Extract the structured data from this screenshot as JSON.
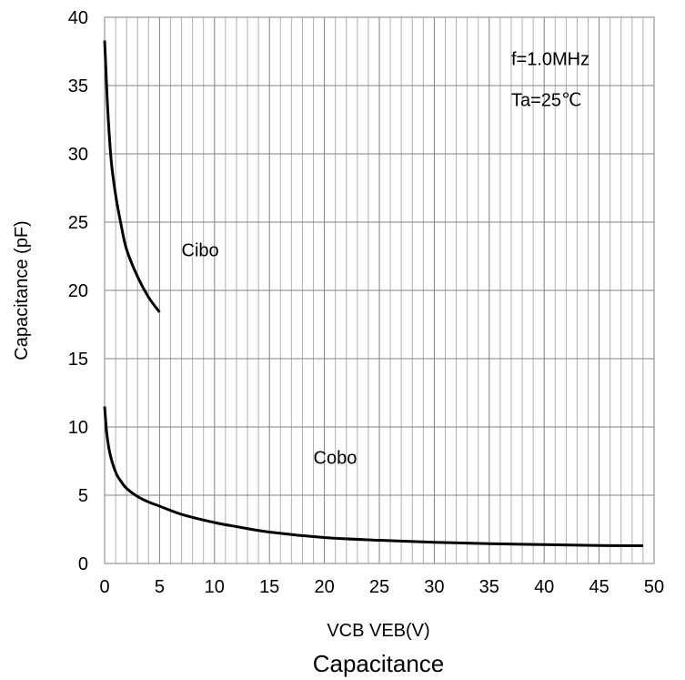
{
  "chart_data": {
    "type": "line",
    "title": "Capacitance",
    "xlabel": "VCB VEB(V)",
    "ylabel": "Capacitance (pF)",
    "xlim": [
      0,
      50
    ],
    "ylim": [
      0,
      40
    ],
    "x_ticks": [
      "0",
      "5",
      "10",
      "15",
      "20",
      "25",
      "30",
      "35",
      "40",
      "45",
      "50"
    ],
    "y_ticks": [
      "0",
      "5",
      "10",
      "15",
      "20",
      "25",
      "30",
      "35",
      "40"
    ],
    "grid": true,
    "minor_grid_x": 1,
    "series": [
      {
        "name": "Cibo",
        "color": "#000000",
        "x": [
          0,
          0.1,
          0.3,
          0.6,
          1,
          1.5,
          2,
          3,
          4,
          5
        ],
        "y": [
          38.3,
          36.5,
          33,
          29.5,
          27,
          24.8,
          23,
          21,
          19.5,
          18.4
        ]
      },
      {
        "name": "Cobo",
        "color": "#000000",
        "x": [
          0,
          0.2,
          0.5,
          1,
          1.5,
          2,
          3,
          4,
          5,
          7,
          10,
          12,
          15,
          20,
          25,
          30,
          35,
          40,
          45,
          49
        ],
        "y": [
          11.5,
          9.5,
          8,
          6.7,
          6,
          5.5,
          4.9,
          4.5,
          4.2,
          3.6,
          3.0,
          2.7,
          2.3,
          1.9,
          1.7,
          1.55,
          1.45,
          1.38,
          1.32,
          1.3
        ]
      }
    ],
    "annotations": [
      {
        "text": "f=1.0MHz",
        "x": 37,
        "y": 36.5
      },
      {
        "text": "Ta=25℃",
        "x": 37,
        "y": 33.5
      },
      {
        "text": "Cibo",
        "x": 7,
        "y": 22.5
      },
      {
        "text": "Cobo",
        "x": 19,
        "y": 7.3
      }
    ]
  }
}
